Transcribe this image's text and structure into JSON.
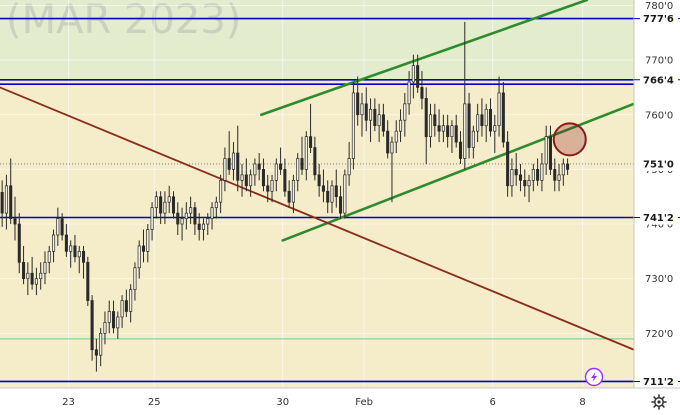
{
  "chart_data": {
    "type": "candlestick",
    "watermark": "(MAR 2023)",
    "colors": {
      "background_upper": "#e3eccc",
      "background_lower": "#f5ecc9",
      "level_line": "#0000cc",
      "channel": "#2e8b2e",
      "trendline": "#8b2c1a",
      "marker": "#8b1a1a",
      "green_line": "#6fcf97",
      "candle": "#2a2a2a"
    },
    "y_axis": {
      "range": [
        710.0,
        781.0
      ],
      "ticks": [
        {
          "v": 780.0,
          "t": "780'0"
        },
        {
          "v": 770.0,
          "t": "770'0"
        },
        {
          "v": 760.0,
          "t": "760'0"
        },
        {
          "v": 750.0,
          "t": "750'0"
        },
        {
          "v": 740.0,
          "t": "740'0"
        },
        {
          "v": 730.0,
          "t": "730'0"
        },
        {
          "v": 720.0,
          "t": "720'0"
        }
      ]
    },
    "x_axis": {
      "range": [
        0,
        148
      ],
      "ticks": [
        {
          "v": 16,
          "t": "23"
        },
        {
          "v": 36,
          "t": "25"
        },
        {
          "v": 66,
          "t": "30"
        },
        {
          "v": 85,
          "t": "Feb"
        },
        {
          "v": 115,
          "t": "6"
        },
        {
          "v": 136,
          "t": "8"
        }
      ]
    },
    "levels": [
      {
        "v": 777.6,
        "t": "777'6"
      },
      {
        "v": 766.4,
        "t": "766'4"
      },
      {
        "v": 765.6,
        "t": ""
      },
      {
        "v": 741.2,
        "t": "741'2"
      },
      {
        "v": 711.2,
        "t": "711'2"
      }
    ],
    "current_price": {
      "v": 751.0,
      "t": "751'0"
    },
    "green_level": 719.0,
    "trendlines": [
      {
        "role": "channel",
        "points": [
          [
            61,
            760.0
          ],
          [
            137,
            781.0
          ]
        ]
      },
      {
        "role": "channel",
        "points": [
          [
            66,
            737.0
          ],
          [
            148,
            762.0
          ]
        ]
      },
      {
        "role": "trendline",
        "points": [
          [
            0,
            765.0
          ],
          [
            148,
            717.0
          ]
        ]
      }
    ],
    "marker": {
      "x": 133,
      "y": 755.5
    },
    "candles": [
      [
        0,
        745.8,
        748.0,
        739.5,
        742.0
      ],
      [
        1,
        742.0,
        749.0,
        739.0,
        747.0
      ],
      [
        2,
        747.0,
        752.0,
        740.0,
        741.0
      ],
      [
        3,
        741.0,
        745.0,
        737.0,
        740.0
      ],
      [
        4,
        740.0,
        742.0,
        731.0,
        733.0
      ],
      [
        5,
        733.0,
        736.0,
        729.0,
        730.0
      ],
      [
        6,
        730.0,
        733.0,
        727.0,
        731.0
      ],
      [
        7,
        731.0,
        734.0,
        728.0,
        729.0
      ],
      [
        8,
        729.0,
        732.0,
        727.0,
        730.0
      ],
      [
        9,
        730.0,
        733.0,
        728.0,
        731.0
      ],
      [
        10,
        731.0,
        735.0,
        729.0,
        733.0
      ],
      [
        11,
        733.0,
        736.0,
        731.0,
        735.0
      ],
      [
        12,
        735.0,
        739.0,
        733.0,
        738.0
      ],
      [
        13,
        738.0,
        743.0,
        736.0,
        741.0
      ],
      [
        14,
        741.0,
        742.0,
        737.0,
        738.0
      ],
      [
        15,
        738.0,
        740.0,
        734.0,
        735.0
      ],
      [
        16,
        735.0,
        737.0,
        732.0,
        736.0
      ],
      [
        17,
        736.0,
        738.0,
        733.0,
        734.0
      ],
      [
        18,
        734.0,
        736.0,
        731.0,
        735.0
      ],
      [
        19,
        735.0,
        736.0,
        730.0,
        733.0
      ],
      [
        20,
        733.0,
        734.0,
        725.0,
        726.0
      ],
      [
        21,
        726.0,
        727.0,
        715.0,
        717.0
      ],
      [
        22,
        717.0,
        719.0,
        713.0,
        716.0
      ],
      [
        23,
        716.0,
        721.0,
        714.0,
        720.0
      ],
      [
        24,
        720.0,
        724.0,
        718.0,
        722.0
      ],
      [
        25,
        722.0,
        726.0,
        720.0,
        724.0
      ],
      [
        26,
        724.0,
        726.0,
        720.0,
        721.0
      ],
      [
        27,
        721.0,
        724.0,
        719.0,
        723.0
      ],
      [
        28,
        723.0,
        727.0,
        721.0,
        726.0
      ],
      [
        29,
        726.0,
        728.0,
        723.0,
        724.0
      ],
      [
        30,
        724.0,
        729.0,
        722.0,
        728.0
      ],
      [
        31,
        728.0,
        733.0,
        726.0,
        732.0
      ],
      [
        32,
        732.0,
        737.0,
        730.0,
        736.0
      ],
      [
        33,
        736.0,
        739.0,
        733.0,
        735.0
      ],
      [
        34,
        735.0,
        740.0,
        733.0,
        739.0
      ],
      [
        35,
        739.0,
        744.0,
        737.0,
        743.0
      ],
      [
        36,
        743.0,
        746.0,
        741.0,
        745.0
      ],
      [
        37,
        745.0,
        746.0,
        740.0,
        742.0
      ],
      [
        38,
        742.0,
        746.0,
        740.0,
        744.0
      ],
      [
        39,
        744.0,
        747.0,
        742.0,
        745.0
      ],
      [
        40,
        745.0,
        746.0,
        741.0,
        742.0
      ],
      [
        41,
        742.0,
        744.0,
        738.0,
        740.0
      ],
      [
        42,
        740.0,
        743.0,
        737.0,
        741.0
      ],
      [
        43,
        741.0,
        744.0,
        739.0,
        742.0
      ],
      [
        44,
        742.0,
        745.0,
        740.0,
        743.0
      ],
      [
        45,
        743.0,
        744.0,
        738.0,
        740.0
      ],
      [
        46,
        740.0,
        742.0,
        737.0,
        739.0
      ],
      [
        47,
        739.0,
        741.0,
        737.0,
        740.0
      ],
      [
        48,
        740.0,
        742.0,
        738.0,
        741.0
      ],
      [
        49,
        741.0,
        744.0,
        739.0,
        743.0
      ],
      [
        50,
        743.0,
        745.0,
        741.0,
        744.0
      ],
      [
        51,
        744.0,
        749.0,
        742.0,
        748.0
      ],
      [
        52,
        748.0,
        754.0,
        746.0,
        752.0
      ],
      [
        53,
        752.0,
        757.0,
        749.0,
        750.0
      ],
      [
        54,
        750.0,
        755.0,
        748.0,
        753.0
      ],
      [
        55,
        753.0,
        758.0,
        746.0,
        748.0
      ],
      [
        56,
        748.0,
        751.0,
        745.0,
        749.0
      ],
      [
        57,
        749.0,
        752.0,
        746.0,
        747.0
      ],
      [
        58,
        747.0,
        750.0,
        745.0,
        749.0
      ],
      [
        59,
        749.0,
        752.0,
        747.0,
        751.0
      ],
      [
        60,
        751.0,
        753.0,
        748.0,
        750.0
      ],
      [
        61,
        750.0,
        752.0,
        746.0,
        747.0
      ],
      [
        62,
        747.0,
        749.0,
        744.0,
        746.0
      ],
      [
        63,
        746.0,
        749.0,
        744.0,
        748.0
      ],
      [
        64,
        748.0,
        752.0,
        746.0,
        751.0
      ],
      [
        65,
        751.0,
        754.0,
        749.0,
        750.0
      ],
      [
        66,
        750.0,
        752.0,
        745.0,
        746.0
      ],
      [
        67,
        746.0,
        748.0,
        743.0,
        744.0
      ],
      [
        68,
        744.0,
        749.0,
        742.0,
        748.0
      ],
      [
        69,
        748.0,
        753.0,
        746.0,
        752.0
      ],
      [
        70,
        752.0,
        756.0,
        749.0,
        750.0
      ],
      [
        71,
        750.0,
        757.0,
        748.0,
        756.0
      ],
      [
        72,
        756.0,
        762.0,
        753.0,
        754.0
      ],
      [
        73,
        754.0,
        756.0,
        748.0,
        749.0
      ],
      [
        74,
        749.0,
        751.0,
        745.0,
        747.0
      ],
      [
        75,
        747.0,
        750.0,
        744.0,
        746.0
      ],
      [
        76,
        746.0,
        748.0,
        742.0,
        744.0
      ],
      [
        77,
        744.0,
        748.0,
        742.0,
        747.0
      ],
      [
        78,
        747.0,
        750.0,
        743.0,
        745.0
      ],
      [
        79,
        745.0,
        747.0,
        741.0,
        742.0
      ],
      [
        80,
        742.0,
        750.0,
        741.0,
        749.0
      ],
      [
        81,
        749.0,
        755.0,
        747.0,
        752.0
      ],
      [
        82,
        752.0,
        766.0,
        750.0,
        764.0
      ],
      [
        83,
        764.0,
        767.0,
        758.0,
        760.0
      ],
      [
        84,
        760.0,
        764.0,
        756.0,
        762.0
      ],
      [
        85,
        762.0,
        765.0,
        757.0,
        759.0
      ],
      [
        86,
        759.0,
        763.0,
        755.0,
        761.0
      ],
      [
        87,
        761.0,
        763.0,
        757.0,
        758.0
      ],
      [
        88,
        758.0,
        762.0,
        755.0,
        760.0
      ],
      [
        89,
        760.0,
        762.0,
        756.0,
        757.0
      ],
      [
        90,
        757.0,
        759.0,
        752.0,
        753.0
      ],
      [
        91,
        753.0,
        756.0,
        744.0,
        755.0
      ],
      [
        92,
        755.0,
        759.0,
        753.0,
        757.0
      ],
      [
        93,
        757.0,
        761.0,
        755.0,
        759.0
      ],
      [
        94,
        759.0,
        764.0,
        756.0,
        762.0
      ],
      [
        95,
        762.0,
        768.0,
        760.0,
        766.0
      ],
      [
        96,
        766.0,
        771.0,
        763.0,
        769.0
      ],
      [
        97,
        769.0,
        771.0,
        764.0,
        765.0
      ],
      [
        98,
        765.0,
        768.0,
        761.0,
        763.0
      ],
      [
        99,
        763.0,
        765.0,
        751.0,
        756.0
      ],
      [
        100,
        756.0,
        762.0,
        754.0,
        760.0
      ],
      [
        101,
        760.0,
        762.0,
        756.0,
        758.0
      ],
      [
        102,
        758.0,
        761.0,
        755.0,
        757.0
      ],
      [
        103,
        757.0,
        760.0,
        755.0,
        758.0
      ],
      [
        104,
        758.0,
        760.0,
        754.0,
        756.0
      ],
      [
        105,
        756.0,
        759.0,
        753.0,
        758.0
      ],
      [
        106,
        758.0,
        760.0,
        754.0,
        755.0
      ],
      [
        107,
        755.0,
        757.0,
        751.0,
        752.0
      ],
      [
        108,
        752.0,
        777.0,
        750.0,
        762.0
      ],
      [
        109,
        762.0,
        764.0,
        752.0,
        754.0
      ],
      [
        110,
        754.0,
        758.0,
        752.0,
        757.0
      ],
      [
        111,
        757.0,
        762.0,
        755.0,
        760.0
      ],
      [
        112,
        760.0,
        763.0,
        756.0,
        758.0
      ],
      [
        113,
        758.0,
        762.0,
        755.0,
        761.0
      ],
      [
        114,
        761.0,
        763.0,
        756.0,
        757.0
      ],
      [
        115,
        757.0,
        760.0,
        753.0,
        758.0
      ],
      [
        116,
        758.0,
        767.0,
        756.0,
        764.0
      ],
      [
        117,
        764.0,
        766.0,
        754.0,
        755.0
      ],
      [
        118,
        755.0,
        757.0,
        745.0,
        747.0
      ],
      [
        119,
        747.0,
        752.0,
        745.0,
        750.0
      ],
      [
        120,
        750.0,
        753.0,
        747.0,
        749.0
      ],
      [
        121,
        749.0,
        751.0,
        746.0,
        748.0
      ],
      [
        122,
        748.0,
        750.0,
        745.0,
        747.0
      ],
      [
        123,
        747.0,
        749.0,
        744.0,
        748.0
      ],
      [
        124,
        748.0,
        751.0,
        746.0,
        750.0
      ],
      [
        125,
        750.0,
        752.0,
        747.0,
        748.0
      ],
      [
        126,
        748.0,
        753.0,
        746.0,
        751.0
      ],
      [
        127,
        751.0,
        758.0,
        749.0,
        756.0
      ],
      [
        128,
        756.0,
        758.0,
        749.0,
        750.0
      ],
      [
        129,
        750.0,
        752.0,
        746.0,
        748.0
      ],
      [
        130,
        748.0,
        751.0,
        746.0,
        749.0
      ],
      [
        131,
        749.0,
        752.0,
        747.0,
        751.0
      ],
      [
        132,
        751.0,
        752.0,
        749.0,
        750.0
      ]
    ]
  },
  "toolbar": {
    "lightning_icon": "lightning-icon",
    "settings_icon": "gear-icon"
  }
}
